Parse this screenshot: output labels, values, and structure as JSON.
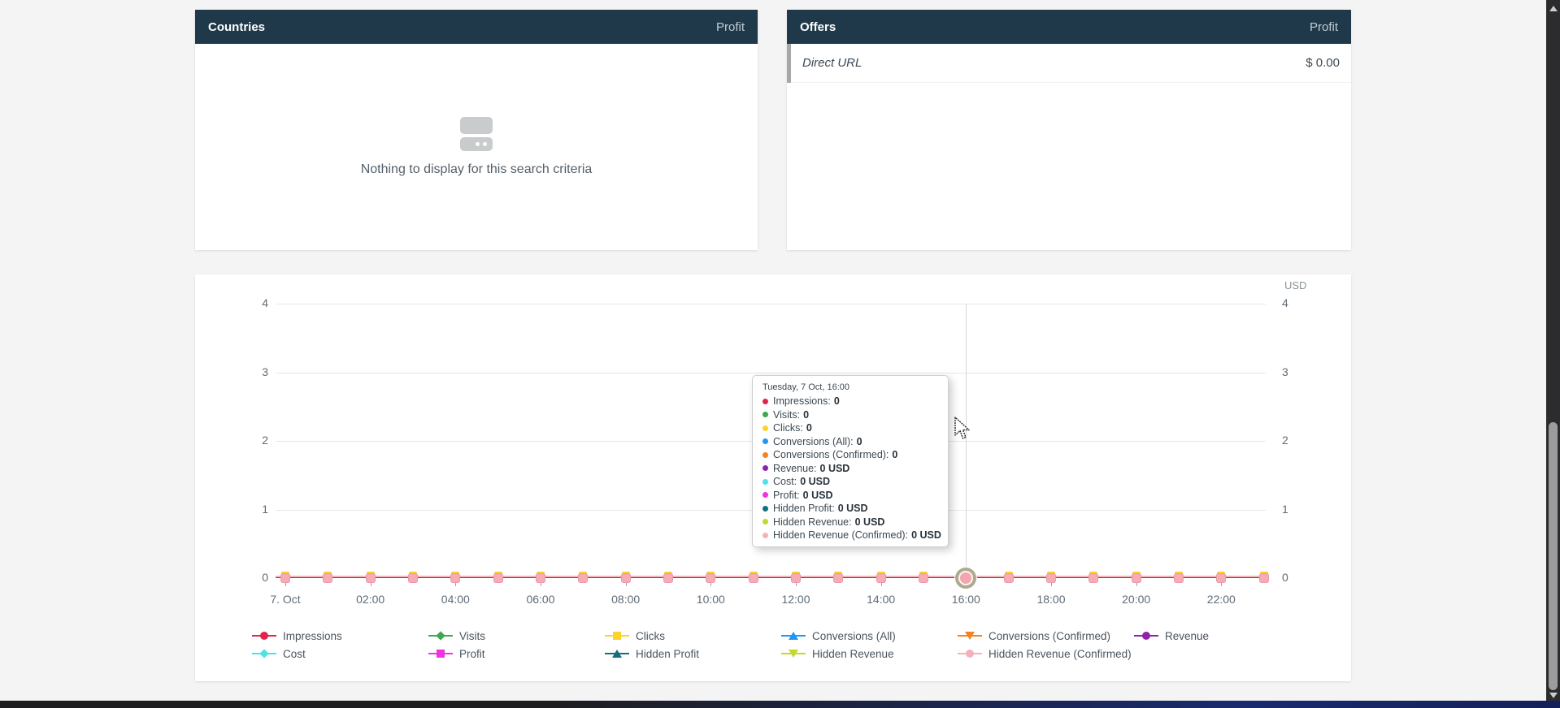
{
  "panels": {
    "countries": {
      "title": "Countries",
      "metric": "Profit",
      "empty_message": "Nothing to display for this search criteria"
    },
    "offers": {
      "title": "Offers",
      "metric": "Profit",
      "rows": [
        {
          "name": "Direct URL",
          "value": "$ 0.00"
        }
      ]
    }
  },
  "chart": {
    "currency_label": "USD",
    "y_ticks": [
      "4",
      "3",
      "2",
      "1",
      "0"
    ],
    "x_ticks": [
      "7. Oct",
      "02:00",
      "04:00",
      "06:00",
      "08:00",
      "10:00",
      "12:00",
      "14:00",
      "16:00",
      "18:00",
      "20:00",
      "22:00"
    ],
    "tooltip": {
      "title": "Tuesday, 7 Oct, 16:00",
      "rows": [
        {
          "label": "Impressions",
          "value": "0"
        },
        {
          "label": "Visits",
          "value": "0"
        },
        {
          "label": "Clicks",
          "value": "0"
        },
        {
          "label": "Conversions (All)",
          "value": "0"
        },
        {
          "label": "Conversions (Confirmed)",
          "value": "0"
        },
        {
          "label": "Revenue",
          "value": "0 USD"
        },
        {
          "label": "Cost",
          "value": "0 USD"
        },
        {
          "label": "Profit",
          "value": "0 USD"
        },
        {
          "label": "Hidden Profit",
          "value": "0 USD"
        },
        {
          "label": "Hidden Revenue",
          "value": "0 USD"
        },
        {
          "label": "Hidden Revenue (Confirmed)",
          "value": "0 USD"
        }
      ]
    }
  },
  "chart_data": {
    "type": "line",
    "title": "",
    "x": [
      "00:00",
      "01:00",
      "02:00",
      "03:00",
      "04:00",
      "05:00",
      "06:00",
      "07:00",
      "08:00",
      "09:00",
      "10:00",
      "11:00",
      "12:00",
      "13:00",
      "14:00",
      "15:00",
      "16:00",
      "17:00",
      "18:00",
      "19:00",
      "20:00",
      "21:00",
      "22:00",
      "23:00"
    ],
    "x_tick_labels_shown": [
      "7. Oct",
      "02:00",
      "04:00",
      "06:00",
      "08:00",
      "10:00",
      "12:00",
      "14:00",
      "16:00",
      "18:00",
      "20:00",
      "22:00"
    ],
    "ylim": [
      0,
      4
    ],
    "y_ticks": [
      0,
      1,
      2,
      3,
      4
    ],
    "y_axis_right_label": "USD",
    "grid": true,
    "legend_position": "bottom",
    "highlighted_point": {
      "x": "16:00",
      "date": "Tuesday, 7 Oct"
    },
    "series": [
      {
        "name": "Impressions",
        "color": "#e0244c",
        "marker": "circle",
        "values": [
          0,
          0,
          0,
          0,
          0,
          0,
          0,
          0,
          0,
          0,
          0,
          0,
          0,
          0,
          0,
          0,
          0,
          0,
          0,
          0,
          0,
          0,
          0,
          0
        ]
      },
      {
        "name": "Visits",
        "color": "#3aaa4e",
        "marker": "diamond",
        "values": [
          0,
          0,
          0,
          0,
          0,
          0,
          0,
          0,
          0,
          0,
          0,
          0,
          0,
          0,
          0,
          0,
          0,
          0,
          0,
          0,
          0,
          0,
          0,
          0
        ]
      },
      {
        "name": "Clicks",
        "color": "#fcd32d",
        "marker": "square",
        "values": [
          0,
          0,
          0,
          0,
          0,
          0,
          0,
          0,
          0,
          0,
          0,
          0,
          0,
          0,
          0,
          0,
          0,
          0,
          0,
          0,
          0,
          0,
          0,
          0
        ]
      },
      {
        "name": "Conversions (All)",
        "color": "#2196f3",
        "marker": "triangle-up",
        "values": [
          0,
          0,
          0,
          0,
          0,
          0,
          0,
          0,
          0,
          0,
          0,
          0,
          0,
          0,
          0,
          0,
          0,
          0,
          0,
          0,
          0,
          0,
          0,
          0
        ]
      },
      {
        "name": "Conversions (Confirmed)",
        "color": "#f58220",
        "marker": "triangle-down",
        "values": [
          0,
          0,
          0,
          0,
          0,
          0,
          0,
          0,
          0,
          0,
          0,
          0,
          0,
          0,
          0,
          0,
          0,
          0,
          0,
          0,
          0,
          0,
          0,
          0
        ]
      },
      {
        "name": "Revenue",
        "color": "#8e24aa",
        "marker": "circle",
        "values": [
          0,
          0,
          0,
          0,
          0,
          0,
          0,
          0,
          0,
          0,
          0,
          0,
          0,
          0,
          0,
          0,
          0,
          0,
          0,
          0,
          0,
          0,
          0,
          0
        ]
      },
      {
        "name": "Cost",
        "color": "#4ee1e6",
        "marker": "diamond",
        "values": [
          0,
          0,
          0,
          0,
          0,
          0,
          0,
          0,
          0,
          0,
          0,
          0,
          0,
          0,
          0,
          0,
          0,
          0,
          0,
          0,
          0,
          0,
          0,
          0
        ]
      },
      {
        "name": "Profit",
        "color": "#ef33e0",
        "marker": "square",
        "values": [
          0,
          0,
          0,
          0,
          0,
          0,
          0,
          0,
          0,
          0,
          0,
          0,
          0,
          0,
          0,
          0,
          0,
          0,
          0,
          0,
          0,
          0,
          0,
          0
        ]
      },
      {
        "name": "Hidden Profit",
        "color": "#11707a",
        "marker": "triangle-up",
        "values": [
          0,
          0,
          0,
          0,
          0,
          0,
          0,
          0,
          0,
          0,
          0,
          0,
          0,
          0,
          0,
          0,
          0,
          0,
          0,
          0,
          0,
          0,
          0,
          0
        ]
      },
      {
        "name": "Hidden Revenue",
        "color": "#c6d62f",
        "marker": "triangle-down",
        "values": [
          0,
          0,
          0,
          0,
          0,
          0,
          0,
          0,
          0,
          0,
          0,
          0,
          0,
          0,
          0,
          0,
          0,
          0,
          0,
          0,
          0,
          0,
          0,
          0
        ]
      },
      {
        "name": "Hidden Revenue (Confirmed)",
        "color": "#f5b1ba",
        "marker": "circle",
        "values": [
          0,
          0,
          0,
          0,
          0,
          0,
          0,
          0,
          0,
          0,
          0,
          0,
          0,
          0,
          0,
          0,
          0,
          0,
          0,
          0,
          0,
          0,
          0,
          0
        ]
      }
    ]
  },
  "colors": {
    "panel_header_bg": "#20394a",
    "page_bg": "#f4f4f5",
    "axis_line": "#4e4e4e",
    "zero_line_pink": "#f5b3ba"
  }
}
